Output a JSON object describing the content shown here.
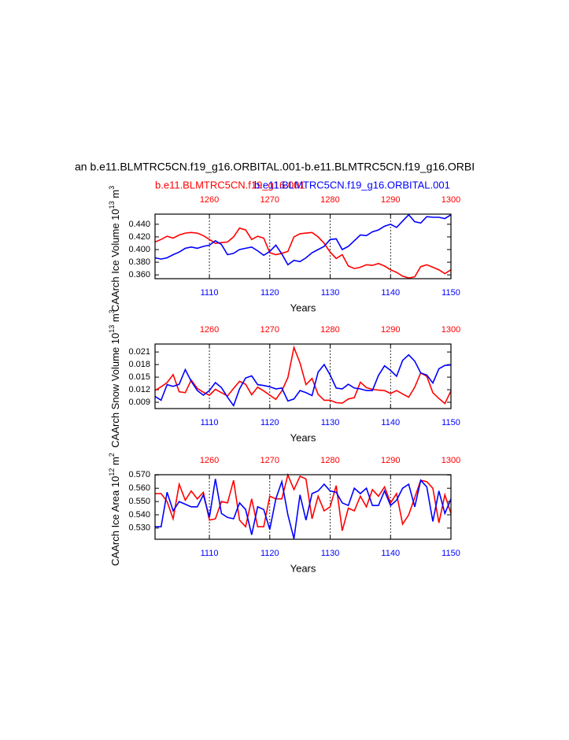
{
  "chart_data": [
    {
      "type": "line",
      "title": "an b.e11.BLMTRC5CN.f19_g16.ORBITAL.001-b.e11.BLMTRC5CN.f19_g16.ORBI",
      "ylabel": [
        "CAArch Ice Volume 10",
        "13",
        " m",
        "3"
      ],
      "xlabel": "Years",
      "grid": true,
      "x": [
        1101,
        1102,
        1103,
        1104,
        1105,
        1106,
        1107,
        1108,
        1109,
        1110,
        1111,
        1112,
        1113,
        1114,
        1115,
        1116,
        1117,
        1118,
        1119,
        1120,
        1121,
        1122,
        1123,
        1124,
        1125,
        1126,
        1127,
        1128,
        1129,
        1130,
        1131,
        1132,
        1133,
        1134,
        1135,
        1136,
        1137,
        1138,
        1139,
        1140,
        1141,
        1142,
        1143,
        1144,
        1145,
        1146,
        1147,
        1148,
        1149,
        1150
      ],
      "xlim": [
        1101,
        1150
      ],
      "xticks": [
        1110,
        1120,
        1130,
        1140,
        1150
      ],
      "xtick_color": "#0000ff",
      "x2": [
        1251,
        1252,
        1253,
        1254,
        1255,
        1256,
        1257,
        1258,
        1259,
        1260,
        1261,
        1262,
        1263,
        1264,
        1265,
        1266,
        1267,
        1268,
        1269,
        1270,
        1271,
        1272,
        1273,
        1274,
        1275,
        1276,
        1277,
        1278,
        1279,
        1280,
        1281,
        1282,
        1283,
        1284,
        1285,
        1286,
        1287,
        1288,
        1289,
        1290,
        1291,
        1292,
        1293,
        1294,
        1295,
        1296,
        1297,
        1298,
        1299,
        1300
      ],
      "x2lim": [
        1251,
        1300
      ],
      "x2ticks": [
        1260,
        1270,
        1280,
        1290,
        1300
      ],
      "x2tick_color": "#ff0000",
      "ylim": [
        0.354,
        0.456
      ],
      "yticks": [
        {
          "value": 0.36,
          "label": "0.360"
        },
        {
          "value": 0.38,
          "label": "0.380"
        },
        {
          "value": 0.4,
          "label": "0.400"
        },
        {
          "value": 0.42,
          "label": "0.420"
        },
        {
          "value": 0.44,
          "label": "0.440"
        }
      ],
      "series": [
        {
          "name": "b.e11.BLMTRC5CN.f19_g16.001",
          "color": "#ff0000",
          "axis": "x2",
          "values": [
            0.412,
            0.416,
            0.421,
            0.418,
            0.423,
            0.426,
            0.427,
            0.426,
            0.422,
            0.416,
            0.41,
            0.411,
            0.412,
            0.42,
            0.434,
            0.431,
            0.416,
            0.421,
            0.418,
            0.395,
            0.392,
            0.394,
            0.397,
            0.42,
            0.425,
            0.426,
            0.427,
            0.42,
            0.41,
            0.396,
            0.386,
            0.392,
            0.374,
            0.37,
            0.372,
            0.376,
            0.375,
            0.378,
            0.374,
            0.368,
            0.364,
            0.358,
            0.355,
            0.357,
            0.373,
            0.376,
            0.372,
            0.368,
            0.362,
            0.368
          ]
        },
        {
          "name": "b.e11.BLMTRC5CN.f19_g16.ORBITAL.001",
          "color": "#0000ff",
          "values": [
            0.387,
            0.385,
            0.387,
            0.392,
            0.396,
            0.402,
            0.404,
            0.402,
            0.405,
            0.407,
            0.414,
            0.408,
            0.392,
            0.394,
            0.4,
            0.402,
            0.404,
            0.398,
            0.391,
            0.397,
            0.407,
            0.393,
            0.376,
            0.383,
            0.381,
            0.387,
            0.395,
            0.4,
            0.405,
            0.416,
            0.417,
            0.4,
            0.405,
            0.414,
            0.423,
            0.422,
            0.428,
            0.431,
            0.437,
            0.44,
            0.435,
            0.445,
            0.455,
            0.444,
            0.442,
            0.452,
            0.451,
            0.451,
            0.449,
            0.455
          ]
        }
      ]
    },
    {
      "type": "line",
      "ylabel": [
        "CAArch Snow Volume 10",
        "13",
        " m",
        "3"
      ],
      "xlabel": "Years",
      "grid": true,
      "x": [
        1101,
        1102,
        1103,
        1104,
        1105,
        1106,
        1107,
        1108,
        1109,
        1110,
        1111,
        1112,
        1113,
        1114,
        1115,
        1116,
        1117,
        1118,
        1119,
        1120,
        1121,
        1122,
        1123,
        1124,
        1125,
        1126,
        1127,
        1128,
        1129,
        1130,
        1131,
        1132,
        1133,
        1134,
        1135,
        1136,
        1137,
        1138,
        1139,
        1140,
        1141,
        1142,
        1143,
        1144,
        1145,
        1146,
        1147,
        1148,
        1149,
        1150
      ],
      "xlim": [
        1101,
        1150
      ],
      "xticks": [
        1110,
        1120,
        1130,
        1140,
        1150
      ],
      "xtick_color": "#0000ff",
      "x2": [
        1251,
        1252,
        1253,
        1254,
        1255,
        1256,
        1257,
        1258,
        1259,
        1260,
        1261,
        1262,
        1263,
        1264,
        1265,
        1266,
        1267,
        1268,
        1269,
        1270,
        1271,
        1272,
        1273,
        1274,
        1275,
        1276,
        1277,
        1278,
        1279,
        1280,
        1281,
        1282,
        1283,
        1284,
        1285,
        1286,
        1287,
        1288,
        1289,
        1290,
        1291,
        1292,
        1293,
        1294,
        1295,
        1296,
        1297,
        1298,
        1299,
        1300
      ],
      "x2lim": [
        1251,
        1300
      ],
      "x2ticks": [
        1260,
        1270,
        1280,
        1290,
        1300
      ],
      "x2tick_color": "#ff0000",
      "ylim": [
        0.0075,
        0.0229
      ],
      "yticks": [
        0.009,
        0.012,
        0.015,
        0.018,
        0.021
      ],
      "series": [
        {
          "color": "#ff0000",
          "axis": "x2",
          "values": [
            0.0118,
            0.0127,
            0.0137,
            0.0156,
            0.0115,
            0.0113,
            0.0143,
            0.0123,
            0.0114,
            0.0107,
            0.0121,
            0.0113,
            0.0105,
            0.0123,
            0.014,
            0.0133,
            0.0108,
            0.0126,
            0.0117,
            0.0107,
            0.0097,
            0.0117,
            0.0149,
            0.0221,
            0.0184,
            0.0132,
            0.0147,
            0.0109,
            0.0095,
            0.0095,
            0.0089,
            0.0088,
            0.0098,
            0.0101,
            0.0138,
            0.0125,
            0.0121,
            0.0119,
            0.0118,
            0.0111,
            0.0118,
            0.011,
            0.0102,
            0.0126,
            0.016,
            0.0152,
            0.0113,
            0.0099,
            0.0087,
            0.0117
          ]
        },
        {
          "color": "#0000ff",
          "values": [
            0.0104,
            0.0095,
            0.0132,
            0.0128,
            0.0133,
            0.0168,
            0.014,
            0.0118,
            0.0107,
            0.0118,
            0.0137,
            0.0125,
            0.0102,
            0.0082,
            0.0122,
            0.0148,
            0.0153,
            0.0132,
            0.013,
            0.0127,
            0.0122,
            0.0124,
            0.0093,
            0.0098,
            0.0118,
            0.0113,
            0.0106,
            0.0162,
            0.018,
            0.0155,
            0.0124,
            0.0122,
            0.0133,
            0.0124,
            0.0122,
            0.0118,
            0.0118,
            0.0154,
            0.0177,
            0.0166,
            0.0152,
            0.019,
            0.0203,
            0.0188,
            0.016,
            0.0155,
            0.0136,
            0.017,
            0.0178,
            0.0179
          ]
        }
      ]
    },
    {
      "type": "line",
      "ylabel": [
        "CAArch Ice Area 10",
        "12",
        " m",
        "2"
      ],
      "xlabel": "Years",
      "grid": true,
      "x": [
        1101,
        1102,
        1103,
        1104,
        1105,
        1106,
        1107,
        1108,
        1109,
        1110,
        1111,
        1112,
        1113,
        1114,
        1115,
        1116,
        1117,
        1118,
        1119,
        1120,
        1121,
        1122,
        1123,
        1124,
        1125,
        1126,
        1127,
        1128,
        1129,
        1130,
        1131,
        1132,
        1133,
        1134,
        1135,
        1136,
        1137,
        1138,
        1139,
        1140,
        1141,
        1142,
        1143,
        1144,
        1145,
        1146,
        1147,
        1148,
        1149,
        1150
      ],
      "xlim": [
        1101,
        1150
      ],
      "xticks": [
        1110,
        1120,
        1130,
        1140,
        1150
      ],
      "xtick_color": "#0000ff",
      "x2": [
        1251,
        1252,
        1253,
        1254,
        1255,
        1256,
        1257,
        1258,
        1259,
        1260,
        1261,
        1262,
        1263,
        1264,
        1265,
        1266,
        1267,
        1268,
        1269,
        1270,
        1271,
        1272,
        1273,
        1274,
        1275,
        1276,
        1277,
        1278,
        1279,
        1280,
        1281,
        1282,
        1283,
        1284,
        1285,
        1286,
        1287,
        1288,
        1289,
        1290,
        1291,
        1292,
        1293,
        1294,
        1295,
        1296,
        1297,
        1298,
        1299,
        1300
      ],
      "x2lim": [
        1251,
        1300
      ],
      "x2ticks": [
        1260,
        1270,
        1280,
        1290,
        1300
      ],
      "x2tick_color": "#ff0000",
      "ylim": [
        0.5216,
        0.5702
      ],
      "yticks": [
        {
          "value": 0.53,
          "label": "0.530"
        },
        {
          "value": 0.54,
          "label": "0.540"
        },
        {
          "value": 0.55,
          "label": "0.550"
        },
        {
          "value": 0.56,
          "label": "0.560"
        },
        {
          "value": 0.57,
          "label": "0.570"
        }
      ],
      "series": [
        {
          "color": "#ff0000",
          "axis": "x2",
          "values": [
            0.556,
            0.556,
            0.55,
            0.537,
            0.563,
            0.551,
            0.558,
            0.552,
            0.557,
            0.536,
            0.537,
            0.55,
            0.549,
            0.566,
            0.536,
            0.531,
            0.552,
            0.531,
            0.531,
            0.554,
            0.552,
            0.552,
            0.57,
            0.559,
            0.569,
            0.567,
            0.537,
            0.554,
            0.543,
            0.546,
            0.562,
            0.528,
            0.545,
            0.543,
            0.554,
            0.546,
            0.559,
            0.554,
            0.561,
            0.549,
            0.556,
            0.533,
            0.54,
            0.553,
            0.566,
            0.565,
            0.56,
            0.534,
            0.555,
            0.541
          ]
        },
        {
          "color": "#0000ff",
          "values": [
            0.531,
            0.531,
            0.557,
            0.543,
            0.55,
            0.548,
            0.546,
            0.546,
            0.555,
            0.538,
            0.567,
            0.541,
            0.538,
            0.537,
            0.549,
            0.544,
            0.525,
            0.546,
            0.544,
            0.529,
            0.552,
            0.565,
            0.54,
            0.522,
            0.555,
            0.536,
            0.556,
            0.558,
            0.563,
            0.558,
            0.557,
            0.549,
            0.547,
            0.56,
            0.556,
            0.56,
            0.547,
            0.547,
            0.558,
            0.547,
            0.551,
            0.56,
            0.563,
            0.546,
            0.566,
            0.561,
            0.535,
            0.558,
            0.541,
            0.552
          ]
        }
      ]
    }
  ]
}
